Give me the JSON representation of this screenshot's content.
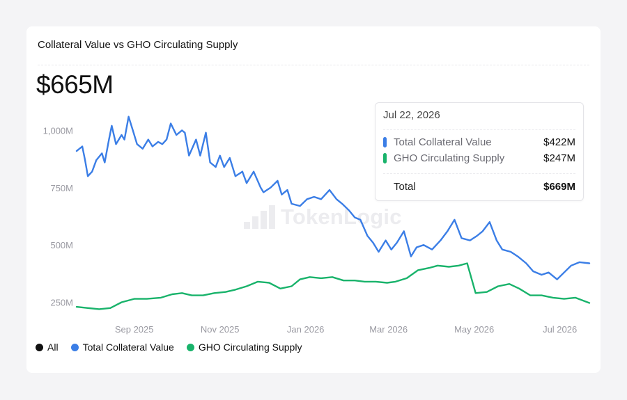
{
  "card": {
    "title": "Collateral Value vs GHO Circulating Supply",
    "big_value": "$665M"
  },
  "watermark": {
    "text": "TokenLogic"
  },
  "tooltip": {
    "date": "Jul 22, 2026",
    "rows": [
      {
        "label": "Total Collateral Value",
        "value": "$422M",
        "color": "#3b7ee6"
      },
      {
        "label": "GHO Circulating Supply",
        "value": "$247M",
        "color": "#19b36b"
      }
    ],
    "total_label": "Total",
    "total_value": "$669M"
  },
  "legend": {
    "items": [
      {
        "label": "All",
        "color": "#111111"
      },
      {
        "label": "Total Collateral Value",
        "color": "#3b7ee6"
      },
      {
        "label": "GHO Circulating Supply",
        "color": "#19b36b"
      }
    ]
  },
  "chart_data": {
    "type": "line",
    "title": "Collateral Value vs GHO Circulating Supply",
    "xlabel": "",
    "ylabel": "",
    "ylim": [
      200,
      1150
    ],
    "yticks": [
      250,
      500,
      750,
      1000
    ],
    "ytick_labels": [
      "250M",
      "500M",
      "750M",
      "1,000M"
    ],
    "xlim": [
      "2025-07-22",
      "2026-07-22"
    ],
    "xticks": [
      "2025-09-01",
      "2025-11-01",
      "2026-01-01",
      "2026-03-01",
      "2026-05-01",
      "2026-07-01"
    ],
    "xtick_labels": [
      "Sep 2025",
      "Nov 2025",
      "Jan 2026",
      "Mar 2026",
      "May 2026",
      "Jul 2026"
    ],
    "grid": false,
    "legend": "bottom-left",
    "series": [
      {
        "name": "Total Collateral Value",
        "color": "#3b7ee6",
        "x": [
          "2025-07-22",
          "2025-07-26",
          "2025-07-28",
          "2025-07-30",
          "2025-08-02",
          "2025-08-05",
          "2025-08-09",
          "2025-08-11",
          "2025-08-14",
          "2025-08-16",
          "2025-08-19",
          "2025-08-23",
          "2025-08-25",
          "2025-08-28",
          "2025-08-31",
          "2025-09-03",
          "2025-09-07",
          "2025-09-11",
          "2025-09-14",
          "2025-09-18",
          "2025-09-21",
          "2025-09-24",
          "2025-09-27",
          "2025-10-01",
          "2025-10-05",
          "2025-10-07",
          "2025-10-10",
          "2025-10-15",
          "2025-10-18",
          "2025-10-22",
          "2025-10-25",
          "2025-10-29",
          "2025-11-01",
          "2025-11-04",
          "2025-11-08",
          "2025-11-12",
          "2025-11-17",
          "2025-11-20",
          "2025-11-25",
          "2025-11-30",
          "2025-12-02",
          "2025-12-07",
          "2025-12-12",
          "2025-12-15",
          "2025-12-19",
          "2025-12-22",
          "2025-12-28",
          "2026-01-02",
          "2026-01-07",
          "2026-01-12",
          "2026-01-18",
          "2026-01-23",
          "2026-01-27",
          "2026-02-01",
          "2026-02-05",
          "2026-02-09",
          "2026-02-14",
          "2026-02-18",
          "2026-02-22",
          "2026-02-27",
          "2026-03-03",
          "2026-03-07",
          "2026-03-12",
          "2026-03-17",
          "2026-03-21",
          "2026-03-26",
          "2026-04-01",
          "2026-04-07",
          "2026-04-12",
          "2026-04-17",
          "2026-04-22",
          "2026-04-28",
          "2026-05-03",
          "2026-05-07",
          "2026-05-12",
          "2026-05-17",
          "2026-05-21",
          "2026-05-27",
          "2026-06-01",
          "2026-06-07",
          "2026-06-12",
          "2026-06-18",
          "2026-06-23",
          "2026-06-29",
          "2026-07-04",
          "2026-07-09",
          "2026-07-15",
          "2026-07-22"
        ],
        "values": [
          910,
          930,
          870,
          800,
          820,
          870,
          900,
          860,
          960,
          1020,
          940,
          980,
          960,
          1060,
          1000,
          940,
          920,
          960,
          930,
          950,
          940,
          960,
          1030,
          980,
          1000,
          990,
          890,
          960,
          890,
          990,
          860,
          840,
          890,
          840,
          880,
          800,
          820,
          770,
          820,
          750,
          730,
          750,
          780,
          720,
          740,
          680,
          670,
          700,
          710,
          700,
          740,
          700,
          680,
          650,
          620,
          610,
          540,
          510,
          470,
          520,
          480,
          510,
          560,
          450,
          490,
          500,
          480,
          520,
          560,
          610,
          530,
          520,
          540,
          560,
          600,
          520,
          480,
          470,
          450,
          420,
          385,
          370,
          380,
          350,
          380,
          410,
          425,
          420
        ]
      },
      {
        "name": "GHO Circulating Supply",
        "color": "#19b36b",
        "x": [
          "2025-07-22",
          "2025-07-30",
          "2025-08-07",
          "2025-08-15",
          "2025-08-23",
          "2025-09-01",
          "2025-09-10",
          "2025-09-20",
          "2025-09-28",
          "2025-10-05",
          "2025-10-12",
          "2025-10-20",
          "2025-10-28",
          "2025-11-05",
          "2025-11-12",
          "2025-11-20",
          "2025-11-28",
          "2025-12-06",
          "2025-12-14",
          "2025-12-22",
          "2025-12-28",
          "2026-01-04",
          "2026-01-12",
          "2026-01-20",
          "2026-01-28",
          "2026-02-05",
          "2026-02-12",
          "2026-02-20",
          "2026-02-28",
          "2026-03-06",
          "2026-03-14",
          "2026-03-22",
          "2026-03-30",
          "2026-04-05",
          "2026-04-13",
          "2026-04-20",
          "2026-04-26",
          "2026-05-02",
          "2026-05-10",
          "2026-05-18",
          "2026-05-26",
          "2026-06-02",
          "2026-06-10",
          "2026-06-18",
          "2026-06-26",
          "2026-07-04",
          "2026-07-12",
          "2026-07-22"
        ],
        "values": [
          230,
          225,
          220,
          225,
          250,
          265,
          265,
          270,
          285,
          290,
          280,
          280,
          290,
          295,
          305,
          320,
          340,
          335,
          310,
          320,
          350,
          360,
          355,
          360,
          345,
          345,
          340,
          340,
          335,
          340,
          355,
          390,
          400,
          410,
          405,
          410,
          420,
          290,
          295,
          320,
          330,
          310,
          280,
          280,
          270,
          265,
          270,
          247
        ]
      }
    ]
  }
}
